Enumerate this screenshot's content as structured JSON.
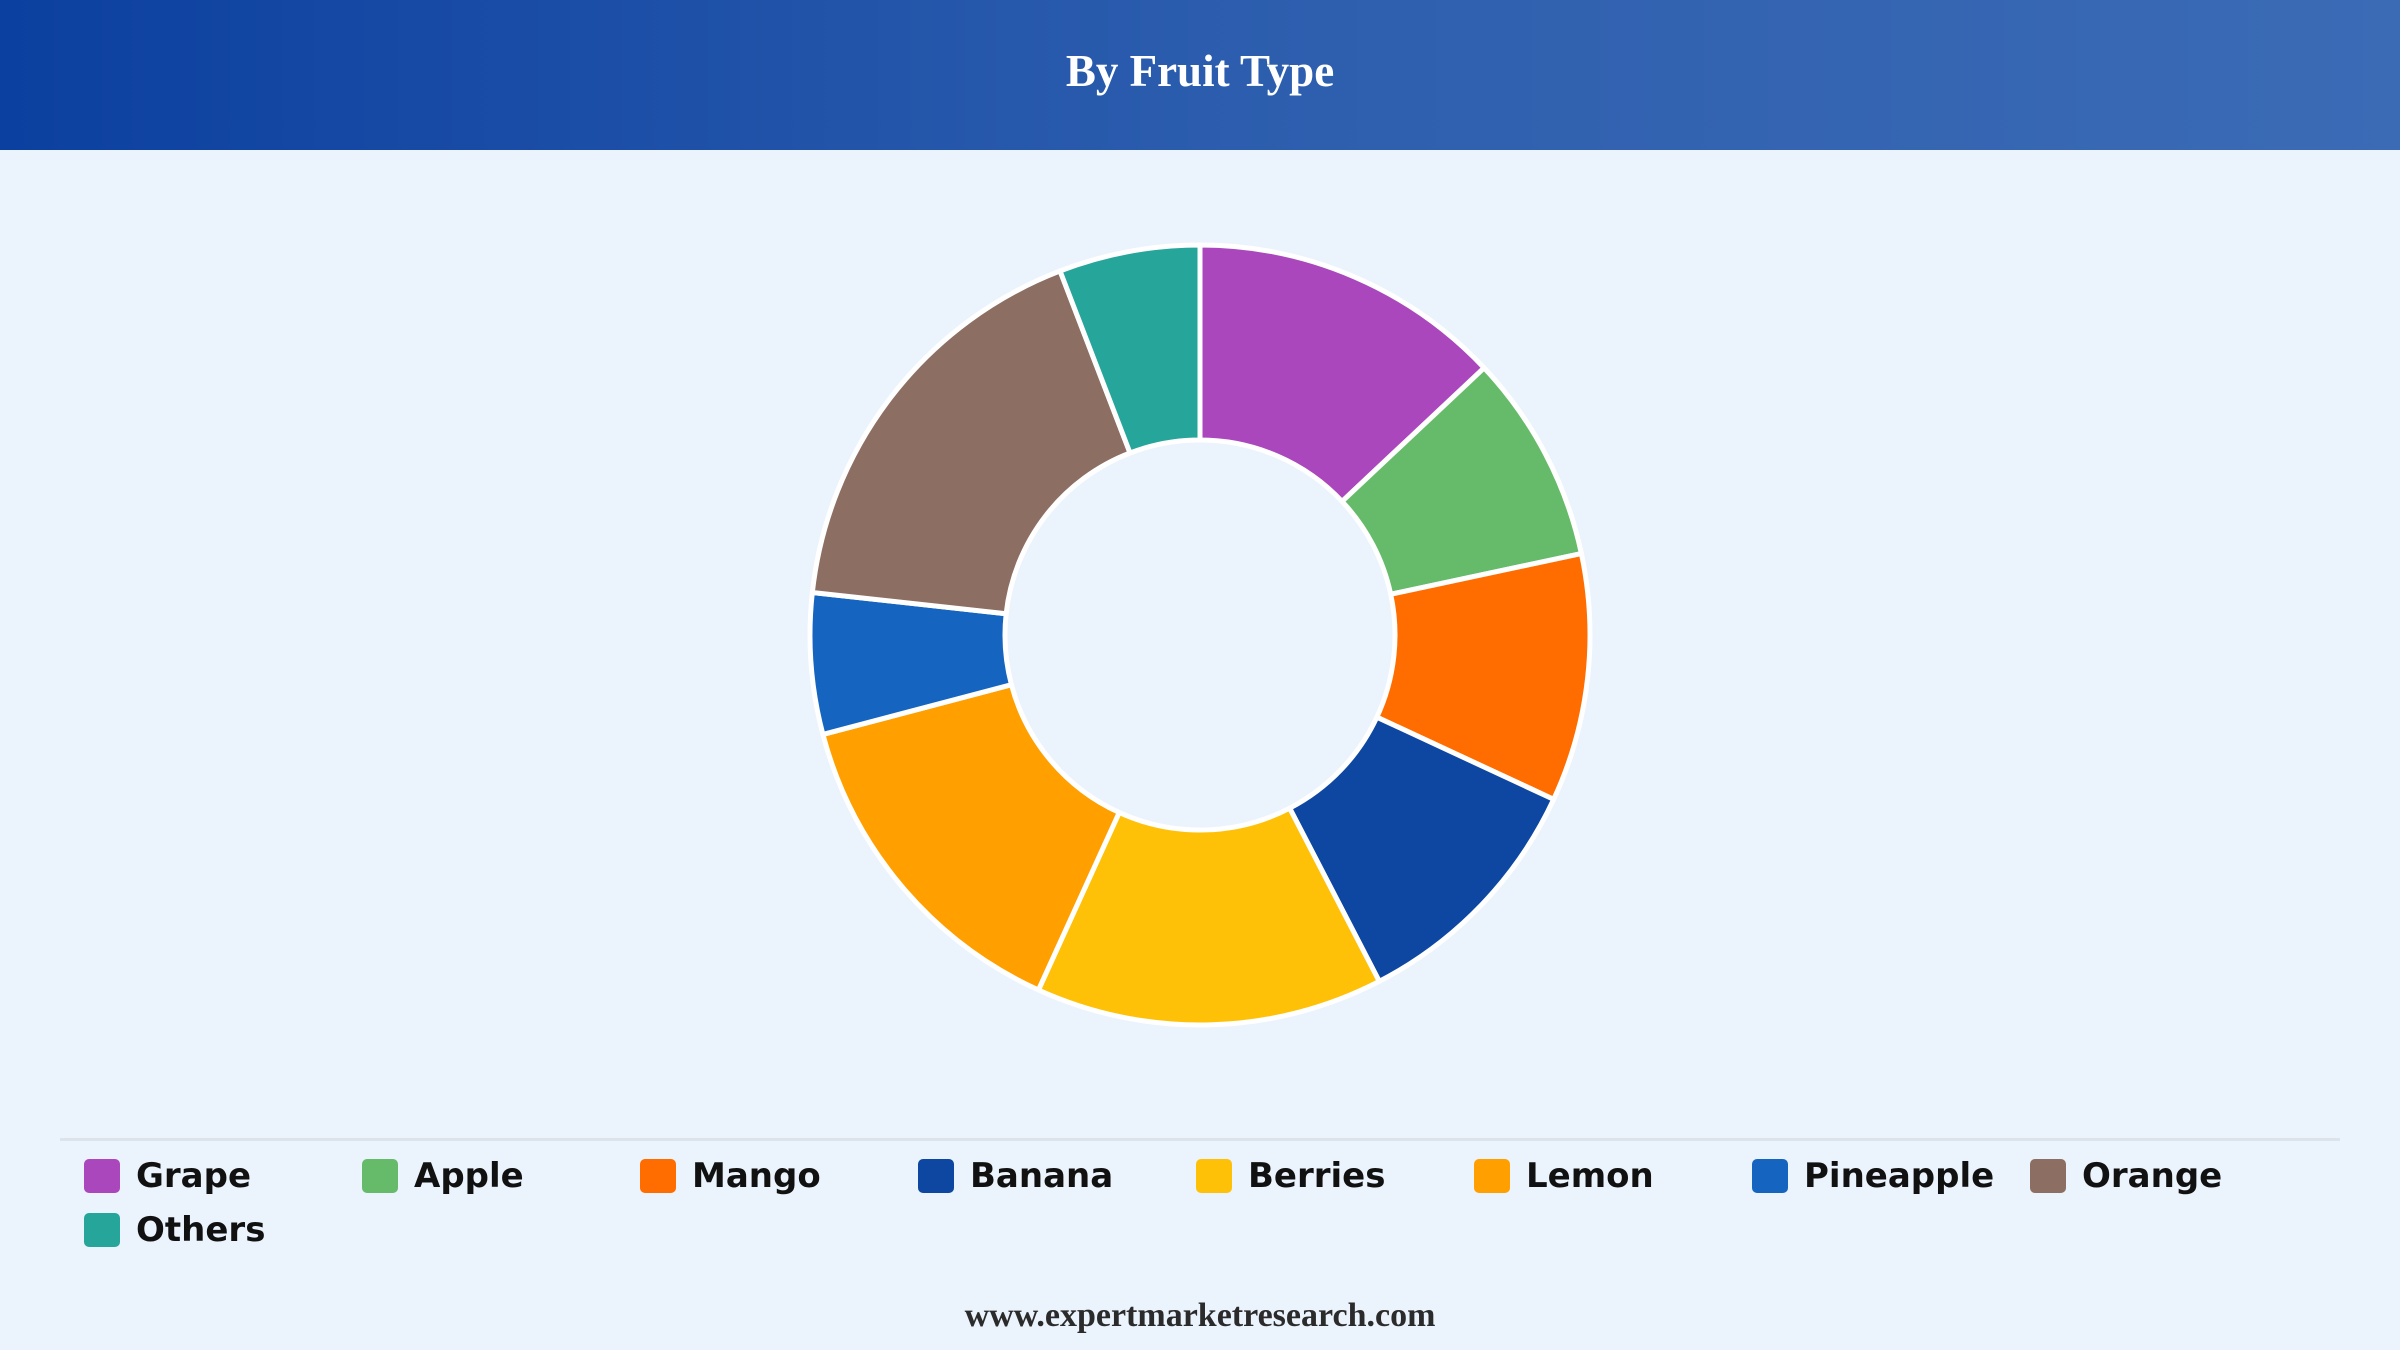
{
  "header": {
    "title": "By Fruit Type"
  },
  "footer": {
    "url": "www.expertmarketresearch.com"
  },
  "chart_data": {
    "type": "pie",
    "donut": true,
    "title": "By Fruit Type",
    "legend_position": "bottom",
    "categories": [
      "Grape",
      "Apple",
      "Mango",
      "Banana",
      "Berries",
      "Lemon",
      "Pineapple",
      "Orange",
      "Others"
    ],
    "values": [
      12.9,
      8.6,
      10.2,
      10.4,
      14.3,
      14.0,
      5.8,
      17.3,
      5.8
    ],
    "colors": [
      "#ab47bc",
      "#66bb6a",
      "#ff6d00",
      "#0d47a1",
      "#ffc107",
      "#ffa000",
      "#1565c0",
      "#8d6e63",
      "#26a69a"
    ]
  }
}
